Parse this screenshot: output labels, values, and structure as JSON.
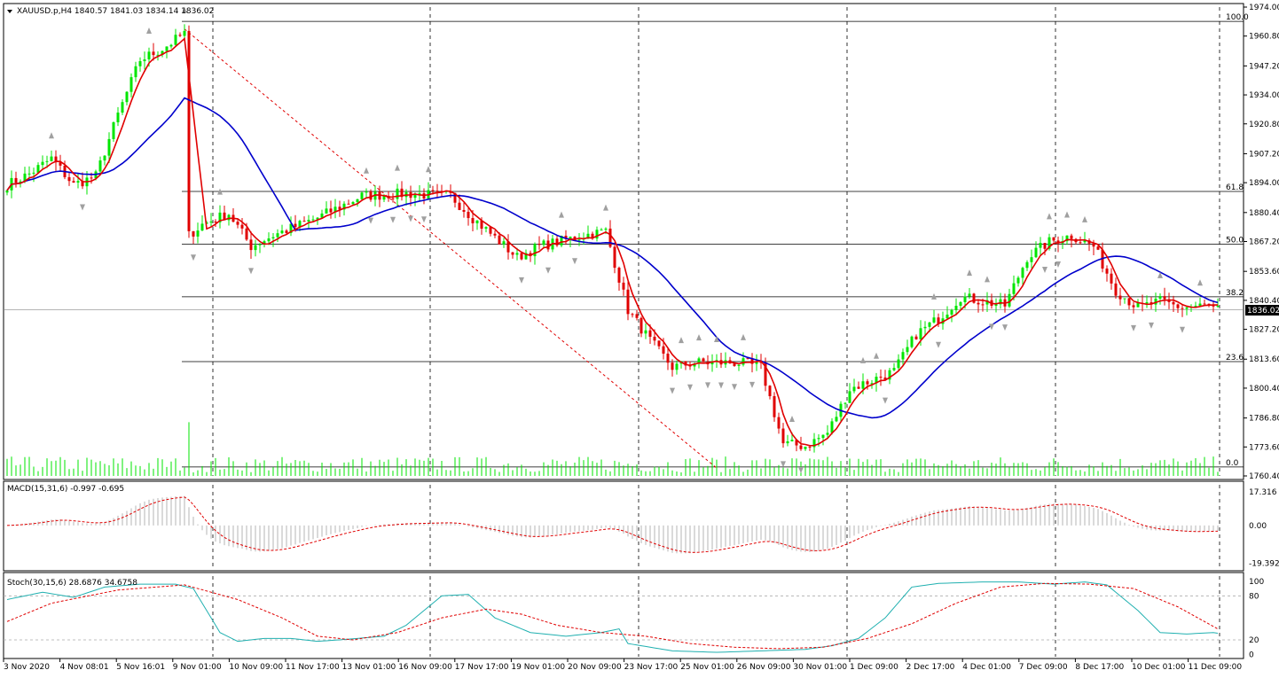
{
  "chart_title": "XAUUSD.p,H4  1840.57 1841.03 1834.14 1836.02",
  "macd_label": "MACD(15,31,6) -0.997 -0.695",
  "stoch_label": "Stoch(30,15,6) 28.6876 34.6758",
  "current_price": "1836.02",
  "colors": {
    "bull": "#00e600",
    "bear": "#e00000",
    "ma_fast": "#e00000",
    "ma_slow": "#0000cc",
    "stoch_main": "#20b0b0",
    "signal": "#e00000",
    "fractal": "#a0a0a0"
  },
  "chart_data": {
    "type": "candlestick",
    "price_axis": {
      "ylim": [
        1760.4,
        1974.0
      ],
      "ticks": [
        "1974.00",
        "1960.80",
        "1947.20",
        "1934.00",
        "1920.80",
        "1907.20",
        "1894.00",
        "1880.40",
        "1867.20",
        "1853.60",
        "1840.40",
        "1827.20",
        "1813.60",
        "1800.40",
        "1786.80",
        "1773.60",
        "1760.40"
      ]
    },
    "time_labels": [
      "3 Nov 2020",
      "4 Nov 08:01",
      "5 Nov 16:01",
      "9 Nov 01:00",
      "10 Nov 09:00",
      "11 Nov 17:00",
      "13 Nov 01:00",
      "16 Nov 09:00",
      "17 Nov 17:00",
      "19 Nov 01:00",
      "20 Nov 09:00",
      "23 Nov 17:00",
      "25 Nov 01:00",
      "26 Nov 09:00",
      "30 Nov 01:00",
      "1 Dec 09:00",
      "2 Dec 17:00",
      "4 Dec 01:00",
      "7 Dec 09:00",
      "8 Dec 17:00",
      "10 Dec 01:00",
      "11 Dec 09:00"
    ],
    "fib_levels": [
      {
        "label": "100.0",
        "price": 1967.5
      },
      {
        "label": "61.8",
        "price": 1890.0
      },
      {
        "label": "50.0",
        "price": 1866.0
      },
      {
        "label": "38.2",
        "price": 1842.0
      },
      {
        "label": "23.6",
        "price": 1812.5
      },
      {
        "label": "0.0",
        "price": 1764.5
      }
    ],
    "trend_line": {
      "from": {
        "index": 40,
        "price": 1964
      },
      "to": {
        "index": 160,
        "price": 1764
      }
    },
    "candle_anchors": [
      [
        0,
        1893
      ],
      [
        5,
        1898
      ],
      [
        10,
        1905
      ],
      [
        15,
        1893
      ],
      [
        20,
        1897
      ],
      [
        25,
        1925
      ],
      [
        30,
        1950
      ],
      [
        35,
        1955
      ],
      [
        40,
        1962
      ],
      [
        41,
        1870
      ],
      [
        44,
        1875
      ],
      [
        50,
        1880
      ],
      [
        55,
        1865
      ],
      [
        60,
        1870
      ],
      [
        70,
        1878
      ],
      [
        80,
        1888
      ],
      [
        90,
        1889
      ],
      [
        100,
        1888
      ],
      [
        105,
        1878
      ],
      [
        115,
        1860
      ],
      [
        120,
        1865
      ],
      [
        130,
        1870
      ],
      [
        135,
        1872
      ],
      [
        140,
        1836
      ],
      [
        145,
        1822
      ],
      [
        150,
        1810
      ],
      [
        155,
        1812
      ],
      [
        165,
        1812
      ],
      [
        170,
        1810
      ],
      [
        175,
        1775
      ],
      [
        180,
        1774
      ],
      [
        185,
        1780
      ],
      [
        190,
        1800
      ],
      [
        200,
        1808
      ],
      [
        205,
        1825
      ],
      [
        210,
        1832
      ],
      [
        215,
        1842
      ],
      [
        220,
        1840
      ],
      [
        225,
        1838
      ],
      [
        230,
        1860
      ],
      [
        235,
        1867
      ],
      [
        240,
        1870
      ],
      [
        245,
        1865
      ],
      [
        250,
        1845
      ],
      [
        255,
        1837
      ],
      [
        260,
        1840
      ],
      [
        265,
        1837
      ],
      [
        270,
        1838
      ],
      [
        273,
        1836
      ]
    ],
    "candle_count": 274,
    "ma_fast_period": 5,
    "ma_slow_period": 25,
    "macd": {
      "ticks": [
        "17.316",
        "0.00",
        "-19.392"
      ],
      "ylim": [
        -22,
        21
      ]
    },
    "stoch": {
      "ticks": [
        "100",
        "80",
        "20",
        "0"
      ],
      "ylim": [
        -3,
        107
      ],
      "levels": [
        80,
        20
      ],
      "main_anchors": [
        [
          0,
          75
        ],
        [
          8,
          85
        ],
        [
          15,
          78
        ],
        [
          22,
          92
        ],
        [
          30,
          96
        ],
        [
          38,
          96
        ],
        [
          42,
          90
        ],
        [
          48,
          30
        ],
        [
          52,
          18
        ],
        [
          58,
          22
        ],
        [
          64,
          22
        ],
        [
          70,
          18
        ],
        [
          75,
          20
        ],
        [
          85,
          25
        ],
        [
          90,
          40
        ],
        [
          98,
          80
        ],
        [
          104,
          82
        ],
        [
          110,
          50
        ],
        [
          118,
          30
        ],
        [
          126,
          25
        ],
        [
          134,
          30
        ],
        [
          138,
          35
        ],
        [
          140,
          15
        ],
        [
          150,
          5
        ],
        [
          160,
          3
        ],
        [
          170,
          5
        ],
        [
          180,
          7
        ],
        [
          186,
          12
        ],
        [
          192,
          22
        ],
        [
          198,
          50
        ],
        [
          204,
          92
        ],
        [
          210,
          97
        ],
        [
          220,
          99
        ],
        [
          228,
          99
        ],
        [
          236,
          96
        ],
        [
          243,
          99
        ],
        [
          248,
          95
        ],
        [
          255,
          60
        ],
        [
          260,
          30
        ],
        [
          266,
          28
        ],
        [
          272,
          30
        ],
        [
          273,
          29
        ]
      ],
      "signal_anchors": [
        [
          0,
          45
        ],
        [
          10,
          70
        ],
        [
          25,
          88
        ],
        [
          40,
          95
        ],
        [
          52,
          75
        ],
        [
          62,
          50
        ],
        [
          70,
          25
        ],
        [
          78,
          20
        ],
        [
          88,
          30
        ],
        [
          98,
          50
        ],
        [
          108,
          62
        ],
        [
          116,
          55
        ],
        [
          124,
          40
        ],
        [
          134,
          30
        ],
        [
          144,
          25
        ],
        [
          154,
          15
        ],
        [
          164,
          10
        ],
        [
          174,
          8
        ],
        [
          184,
          10
        ],
        [
          194,
          22
        ],
        [
          204,
          42
        ],
        [
          214,
          70
        ],
        [
          224,
          92
        ],
        [
          234,
          97
        ],
        [
          244,
          96
        ],
        [
          254,
          90
        ],
        [
          264,
          65
        ],
        [
          273,
          35
        ]
      ]
    }
  }
}
